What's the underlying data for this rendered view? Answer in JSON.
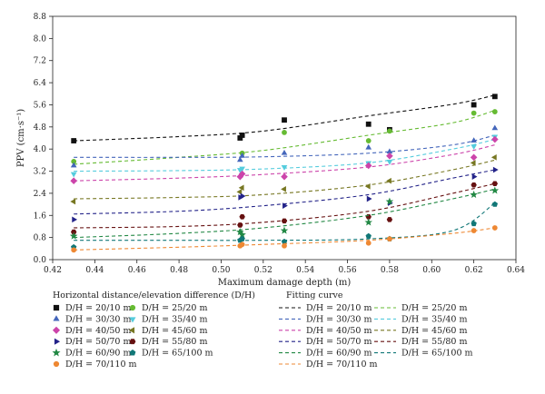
{
  "chart_data": {
    "type": "scatter",
    "xlabel": "Maximum damage depth (m)",
    "ylabel": "PPV (cm·s⁻¹)",
    "xlim": [
      0.42,
      0.64
    ],
    "ylim": [
      0.0,
      8.8
    ],
    "x_ticks": [
      "0.42",
      "0.44",
      "0.46",
      "0.48",
      "0.50",
      "0.52",
      "0.54",
      "0.56",
      "0.58",
      "0.60",
      "0.62",
      "0.64"
    ],
    "y_ticks": [
      "0.0",
      "0.8",
      "1.6",
      "2.4",
      "3.2",
      "4.0",
      "4.8",
      "5.6",
      "6.4",
      "7.2",
      "8.0",
      "8.8"
    ],
    "grid": false,
    "legend_points_title": "Horizontal distance/elevation difference (D/H)",
    "legend_curves_title": "Fitting curve",
    "series": [
      {
        "name": "D/H = 20/10 m",
        "color": "#111111",
        "marker": "square",
        "x": [
          0.43,
          0.509,
          0.51,
          0.53,
          0.57,
          0.58,
          0.62,
          0.63
        ],
        "y": [
          4.3,
          4.4,
          4.5,
          5.05,
          4.9,
          4.7,
          5.6,
          5.9
        ],
        "fit": [
          4.3,
          4.45,
          4.65,
          5.2,
          5.62,
          5.95
        ]
      },
      {
        "name": "D/H = 25/20 m",
        "color": "#66bb33",
        "marker": "circle",
        "x": [
          0.43,
          0.51,
          0.53,
          0.57,
          0.58,
          0.62,
          0.63
        ],
        "y": [
          3.55,
          3.85,
          4.6,
          4.3,
          4.65,
          5.3,
          5.35
        ],
        "fit": [
          3.45,
          3.7,
          3.95,
          4.5,
          4.95,
          5.4
        ]
      },
      {
        "name": "D/H = 30/30 m",
        "color": "#4466bb",
        "marker": "triangle-up",
        "x": [
          0.43,
          0.509,
          0.51,
          0.53,
          0.57,
          0.58,
          0.62,
          0.63
        ],
        "y": [
          3.4,
          3.6,
          3.75,
          3.85,
          4.05,
          3.9,
          4.3,
          4.75
        ],
        "fit": [
          3.7,
          3.7,
          3.72,
          3.85,
          4.15,
          4.5
        ]
      },
      {
        "name": "D/H = 35/40 m",
        "color": "#55ccdd",
        "marker": "triangle-down",
        "x": [
          0.43,
          0.509,
          0.51,
          0.53,
          0.57,
          0.58,
          0.62,
          0.63
        ],
        "y": [
          3.1,
          3.25,
          3.3,
          3.35,
          3.5,
          3.55,
          4.1,
          4.45
        ],
        "fit": [
          3.2,
          3.22,
          3.28,
          3.5,
          4.0,
          4.35
        ]
      },
      {
        "name": "D/H = 40/50 m",
        "color": "#cc44aa",
        "marker": "diamond",
        "x": [
          0.43,
          0.509,
          0.51,
          0.53,
          0.57,
          0.58,
          0.62,
          0.63
        ],
        "y": [
          2.85,
          3.0,
          3.1,
          3.0,
          3.4,
          3.75,
          3.7,
          4.35
        ],
        "fit": [
          2.85,
          2.95,
          3.08,
          3.35,
          3.8,
          4.15
        ]
      },
      {
        "name": "D/H = 45/60 m",
        "color": "#777722",
        "marker": "triangle-left",
        "x": [
          0.43,
          0.509,
          0.51,
          0.53,
          0.57,
          0.58,
          0.62,
          0.63
        ],
        "y": [
          2.1,
          2.45,
          2.6,
          2.55,
          2.65,
          2.85,
          3.5,
          3.7
        ],
        "fit": [
          2.2,
          2.25,
          2.35,
          2.7,
          3.25,
          3.6
        ]
      },
      {
        "name": "D/H = 50/70 m",
        "color": "#222288",
        "marker": "triangle-right",
        "x": [
          0.43,
          0.509,
          0.51,
          0.53,
          0.57,
          0.58,
          0.62,
          0.63
        ],
        "y": [
          1.45,
          2.25,
          2.3,
          1.95,
          2.2,
          2.05,
          3.0,
          3.25
        ],
        "fit": [
          1.65,
          1.75,
          1.95,
          2.35,
          2.95,
          3.25
        ]
      },
      {
        "name": "D/H = 55/80 m",
        "color": "#661111",
        "marker": "hexagon",
        "x": [
          0.43,
          0.509,
          0.51,
          0.53,
          0.57,
          0.58,
          0.62,
          0.63
        ],
        "y": [
          1.0,
          1.25,
          1.55,
          1.4,
          1.55,
          1.45,
          2.7,
          2.75
        ],
        "fit": [
          1.15,
          1.2,
          1.35,
          1.75,
          2.4,
          2.75
        ]
      },
      {
        "name": "D/H = 60/90 m",
        "color": "#228844",
        "marker": "star",
        "x": [
          0.43,
          0.509,
          0.51,
          0.53,
          0.57,
          0.58,
          0.62,
          0.63
        ],
        "y": [
          0.85,
          1.0,
          0.9,
          1.05,
          1.35,
          2.1,
          2.35,
          2.5
        ],
        "fit": [
          0.8,
          0.95,
          1.15,
          1.6,
          2.2,
          2.55
        ]
      },
      {
        "name": "D/H = 65/100 m",
        "color": "#117777",
        "marker": "pentagon",
        "x": [
          0.43,
          0.509,
          0.51,
          0.53,
          0.57,
          0.58,
          0.62,
          0.63
        ],
        "y": [
          0.45,
          0.7,
          0.75,
          0.65,
          0.85,
          0.75,
          1.3,
          2.0
        ],
        "fit": [
          0.7,
          0.7,
          0.7,
          0.75,
          1.05,
          2.05
        ]
      },
      {
        "name": "D/H = 70/110 m",
        "color": "#ee8833",
        "marker": "circle",
        "x": [
          0.43,
          0.509,
          0.51,
          0.53,
          0.57,
          0.58,
          0.62,
          0.63
        ],
        "y": [
          0.35,
          0.5,
          0.55,
          0.5,
          0.6,
          0.75,
          1.05,
          1.15
        ],
        "fit": [
          0.35,
          0.45,
          0.55,
          0.7,
          0.95,
          1.15
        ]
      }
    ],
    "fit_x": [
      0.43,
      0.48,
      0.52,
      0.57,
      0.61,
      0.63
    ]
  }
}
